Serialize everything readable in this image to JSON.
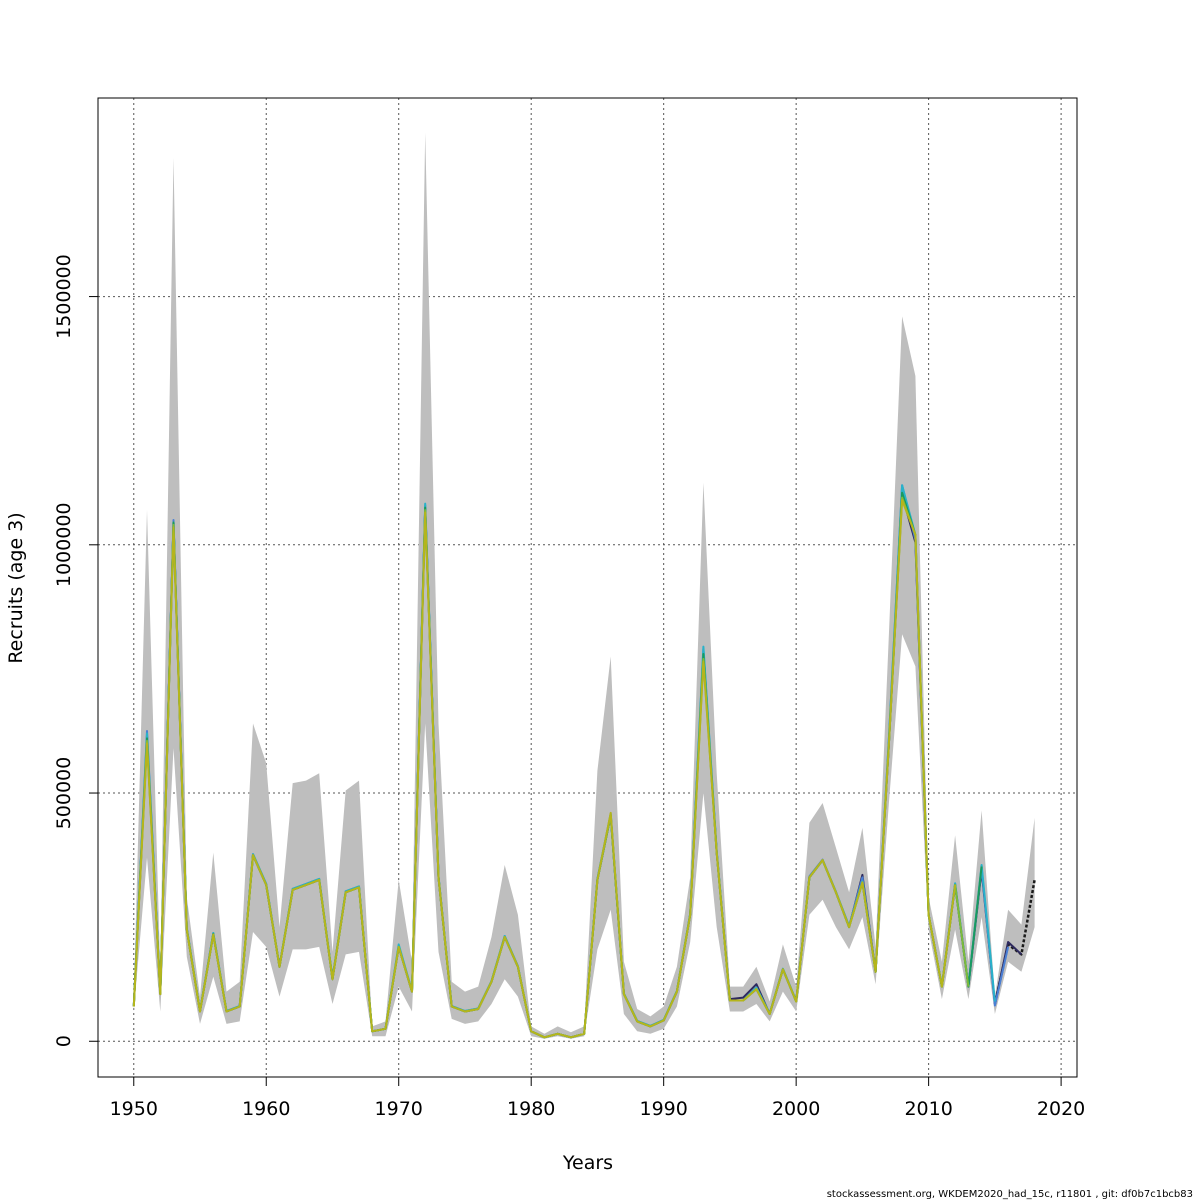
{
  "chart_data": {
    "type": "line",
    "title": "",
    "xlabel": "Years",
    "ylabel": "Recruits (age 3)",
    "xlim": [
      1947.3,
      2021.2
    ],
    "ylim": [
      -72000,
      1900000
    ],
    "x_ticks": [
      1950,
      1960,
      1970,
      1980,
      1990,
      2000,
      2010,
      2020
    ],
    "y_ticks": [
      0,
      500000,
      1000000,
      1500000
    ],
    "grid": true,
    "grid_style": "dotted",
    "legend": "none",
    "band_color": "#bebebe",
    "band": {
      "x": [
        1950,
        1951,
        1952,
        1953,
        1954,
        1955,
        1956,
        1957,
        1958,
        1959,
        1960,
        1961,
        1962,
        1963,
        1964,
        1965,
        1966,
        1967,
        1968,
        1969,
        1970,
        1971,
        1972,
        1973,
        1974,
        1975,
        1976,
        1977,
        1978,
        1979,
        1980,
        1981,
        1982,
        1983,
        1984,
        1985,
        1986,
        1987,
        1988,
        1989,
        1990,
        1991,
        1992,
        1993,
        1994,
        1995,
        1996,
        1997,
        1998,
        1999,
        2000,
        2001,
        2002,
        2003,
        2004,
        2005,
        2006,
        2007,
        2008,
        2009,
        2010,
        2011,
        2012,
        2013,
        2014,
        2015,
        2016,
        2017,
        2018
      ],
      "upper": [
        90000,
        1070000,
        140000,
        1780000,
        290000,
        90000,
        380000,
        100000,
        120000,
        640000,
        560000,
        230000,
        520000,
        525000,
        540000,
        180000,
        505000,
        525000,
        30000,
        40000,
        325000,
        160000,
        1830000,
        640000,
        120000,
        100000,
        110000,
        210000,
        355000,
        255000,
        30000,
        15000,
        30000,
        18000,
        30000,
        545000,
        775000,
        160000,
        65000,
        50000,
        70000,
        150000,
        330000,
        1125000,
        540000,
        110000,
        110000,
        150000,
        80000,
        195000,
        110000,
        440000,
        480000,
        390000,
        300000,
        430000,
        190000,
        820000,
        1460000,
        1340000,
        290000,
        160000,
        415000,
        160000,
        465000,
        90000,
        265000,
        235000,
        450000
      ],
      "lower": [
        60000,
        370000,
        60000,
        590000,
        170000,
        35000,
        130000,
        35000,
        40000,
        220000,
        190000,
        90000,
        185000,
        185000,
        190000,
        75000,
        175000,
        180000,
        10000,
        10000,
        110000,
        60000,
        640000,
        180000,
        45000,
        35000,
        40000,
        75000,
        125000,
        90000,
        10000,
        5000,
        10000,
        5000,
        10000,
        185000,
        265000,
        55000,
        20000,
        15000,
        25000,
        70000,
        200000,
        500000,
        230000,
        60000,
        60000,
        75000,
        40000,
        100000,
        60000,
        255000,
        285000,
        230000,
        185000,
        250000,
        115000,
        480000,
        820000,
        755000,
        225000,
        85000,
        225000,
        85000,
        250000,
        55000,
        160000,
        140000,
        230000
      ]
    },
    "series": [
      {
        "color": "#1a1a1a",
        "x": [
          2015,
          2016,
          2017,
          2018
        ],
        "values": [
          75000,
          195000,
          175000,
          325000
        ]
      },
      {
        "color": "#2e2a5e",
        "x": [
          1950,
          1951,
          1952,
          1953,
          1954,
          1955,
          1956,
          1957,
          1958,
          1959,
          1960,
          1961,
          1962,
          1963,
          1964,
          1965,
          1966,
          1967,
          1968,
          1969,
          1970,
          1971,
          1972,
          1973,
          1974,
          1975,
          1976,
          1977,
          1978,
          1979,
          1980,
          1981,
          1982,
          1983,
          1984,
          1985,
          1986,
          1987,
          1988,
          1989,
          1990,
          1991,
          1992,
          1993,
          1994,
          1995,
          1996,
          1997,
          1998,
          1999,
          2000,
          2001,
          2002,
          2003,
          2004,
          2005,
          2006,
          2007,
          2008,
          2009,
          2010,
          2011,
          2012,
          2013,
          2014,
          2015,
          2016,
          2017
        ],
        "values": [
          70000,
          615000,
          95000,
          1045000,
          225000,
          60000,
          215000,
          60000,
          70000,
          375000,
          315000,
          150000,
          305000,
          315000,
          325000,
          125000,
          300000,
          310000,
          20000,
          25000,
          190000,
          100000,
          1075000,
          330000,
          70000,
          60000,
          65000,
          120000,
          210000,
          150000,
          20000,
          8000,
          15000,
          8000,
          15000,
          325000,
          455000,
          95000,
          40000,
          30000,
          42000,
          100000,
          255000,
          780000,
          380000,
          85000,
          88000,
          115000,
          55000,
          145000,
          80000,
          330000,
          365000,
          300000,
          230000,
          335000,
          140000,
          600000,
          1100000,
          1005000,
          255000,
          110000,
          315000,
          110000,
          345000,
          75000,
          200000,
          175000
        ]
      },
      {
        "color": "#4a7fd4",
        "x": [
          1950,
          1951,
          1952,
          1953,
          1954,
          1955,
          1956,
          1957,
          1958,
          1959,
          1960,
          1961,
          1962,
          1963,
          1964,
          1965,
          1966,
          1967,
          1968,
          1969,
          1970,
          1971,
          1972,
          1973,
          1974,
          1975,
          1976,
          1977,
          1978,
          1979,
          1980,
          1981,
          1982,
          1983,
          1984,
          1985,
          1986,
          1987,
          1988,
          1989,
          1990,
          1991,
          1992,
          1993,
          1994,
          1995,
          1996,
          1997,
          1998,
          1999,
          2000,
          2001,
          2002,
          2003,
          2004,
          2005,
          2006,
          2007,
          2008,
          2009,
          2010,
          2011,
          2012,
          2013,
          2014,
          2015,
          2016
        ],
        "values": [
          72000,
          625000,
          97000,
          1050000,
          228000,
          61000,
          218000,
          61000,
          71000,
          377000,
          317000,
          151000,
          307000,
          317000,
          327000,
          127000,
          302000,
          312000,
          20000,
          25000,
          192000,
          101000,
          1080000,
          332000,
          71000,
          61000,
          66000,
          121000,
          212000,
          151000,
          20000,
          8000,
          15000,
          8000,
          15000,
          327000,
          458000,
          96000,
          41000,
          31000,
          43000,
          101000,
          257000,
          790000,
          383000,
          82000,
          82000,
          108000,
          56000,
          146000,
          81000,
          332000,
          366000,
          301000,
          232000,
          330000,
          140000,
          610000,
          1120000,
          1010000,
          255000,
          111000,
          318000,
          111000,
          350000,
          72000,
          190000
        ]
      },
      {
        "color": "#29b2c9",
        "x": [
          1950,
          1951,
          1952,
          1953,
          1954,
          1955,
          1956,
          1957,
          1958,
          1959,
          1960,
          1961,
          1962,
          1963,
          1964,
          1965,
          1966,
          1967,
          1968,
          1969,
          1970,
          1971,
          1972,
          1973,
          1974,
          1975,
          1976,
          1977,
          1978,
          1979,
          1980,
          1981,
          1982,
          1983,
          1984,
          1985,
          1986,
          1987,
          1988,
          1989,
          1990,
          1991,
          1992,
          1993,
          1994,
          1995,
          1996,
          1997,
          1998,
          1999,
          2000,
          2001,
          2002,
          2003,
          2004,
          2005,
          2006,
          2007,
          2008,
          2009,
          2010,
          2011,
          2012,
          2013,
          2014,
          2015
        ],
        "values": [
          72000,
          620000,
          97000,
          1045000,
          228000,
          61000,
          218000,
          61000,
          71000,
          377000,
          317000,
          151000,
          307000,
          317000,
          327000,
          127000,
          302000,
          312000,
          20000,
          25000,
          195000,
          101000,
          1083000,
          332000,
          71000,
          61000,
          66000,
          121000,
          212000,
          151000,
          20000,
          8000,
          15000,
          8000,
          15000,
          327000,
          458000,
          96000,
          41000,
          31000,
          43000,
          101000,
          257000,
          795000,
          383000,
          82000,
          82000,
          108000,
          56000,
          146000,
          81000,
          330000,
          365000,
          301000,
          232000,
          322000,
          140000,
          610000,
          1120000,
          1020000,
          255000,
          111000,
          318000,
          111000,
          355000,
          80000
        ]
      },
      {
        "color": "#1a9a5e",
        "x": [
          1950,
          1951,
          1952,
          1953,
          1954,
          1955,
          1956,
          1957,
          1958,
          1959,
          1960,
          1961,
          1962,
          1963,
          1964,
          1965,
          1966,
          1967,
          1968,
          1969,
          1970,
          1971,
          1972,
          1973,
          1974,
          1975,
          1976,
          1977,
          1978,
          1979,
          1980,
          1981,
          1982,
          1983,
          1984,
          1985,
          1986,
          1987,
          1988,
          1989,
          1990,
          1991,
          1992,
          1993,
          1994,
          1995,
          1996,
          1997,
          1998,
          1999,
          2000,
          2001,
          2002,
          2003,
          2004,
          2005,
          2006,
          2007,
          2008,
          2009,
          2010,
          2011,
          2012,
          2013,
          2014
        ],
        "values": [
          71000,
          610000,
          96000,
          1045000,
          226000,
          60000,
          216000,
          60000,
          70000,
          375000,
          315000,
          150000,
          305000,
          315000,
          325000,
          125000,
          300000,
          310000,
          20000,
          25000,
          190000,
          100000,
          1075000,
          330000,
          70000,
          60000,
          65000,
          120000,
          210000,
          150000,
          20000,
          8000,
          15000,
          8000,
          15000,
          325000,
          455000,
          95000,
          40000,
          30000,
          42000,
          100000,
          255000,
          780000,
          380000,
          82000,
          82000,
          105000,
          55000,
          145000,
          80000,
          330000,
          365000,
          300000,
          230000,
          320000,
          140000,
          600000,
          1105000,
          1020000,
          255000,
          110000,
          315000,
          110000,
          352000
        ]
      },
      {
        "color": "#7fba3a",
        "x": [
          1950,
          1951,
          1952,
          1953,
          1954,
          1955,
          1956,
          1957,
          1958,
          1959,
          1960,
          1961,
          1962,
          1963,
          1964,
          1965,
          1966,
          1967,
          1968,
          1969,
          1970,
          1971,
          1972,
          1973,
          1974,
          1975,
          1976,
          1977,
          1978,
          1979,
          1980,
          1981,
          1982,
          1983,
          1984,
          1985,
          1986,
          1987,
          1988,
          1989,
          1990,
          1991,
          1992,
          1993,
          1994,
          1995,
          1996,
          1997,
          1998,
          1999,
          2000,
          2001,
          2002,
          2003,
          2004,
          2005,
          2006,
          2007,
          2008,
          2009,
          2010,
          2011,
          2012,
          2013
        ],
        "values": [
          70000,
          605000,
          95000,
          1040000,
          225000,
          60000,
          215000,
          60000,
          70000,
          375000,
          315000,
          150000,
          305000,
          315000,
          325000,
          125000,
          300000,
          310000,
          20000,
          25000,
          190000,
          100000,
          1070000,
          330000,
          70000,
          60000,
          65000,
          120000,
          210000,
          150000,
          20000,
          8000,
          15000,
          8000,
          15000,
          325000,
          455000,
          95000,
          40000,
          30000,
          42000,
          100000,
          255000,
          770000,
          380000,
          82000,
          82000,
          105000,
          55000,
          145000,
          80000,
          330000,
          365000,
          300000,
          230000,
          320000,
          140000,
          600000,
          1095000,
          1020000,
          255000,
          110000,
          315000,
          110000
        ]
      },
      {
        "color": "#b5b51c",
        "x": [
          1950,
          1951,
          1952,
          1953,
          1954,
          1955,
          1956,
          1957,
          1958,
          1959,
          1960,
          1961,
          1962,
          1963,
          1964,
          1965,
          1966,
          1967,
          1968,
          1969,
          1970,
          1971,
          1972,
          1973,
          1974,
          1975,
          1976,
          1977,
          1978,
          1979,
          1980,
          1981,
          1982,
          1983,
          1984,
          1985,
          1986,
          1987,
          1988,
          1989,
          1990,
          1991,
          1992,
          1993,
          1994,
          1995,
          1996,
          1997,
          1998,
          1999,
          2000,
          2001,
          2002,
          2003,
          2004,
          2005,
          2006,
          2007,
          2008,
          2009,
          2010,
          2011,
          2012
        ],
        "values": [
          70000,
          600000,
          95000,
          1035000,
          225000,
          60000,
          215000,
          60000,
          70000,
          375000,
          315000,
          150000,
          305000,
          315000,
          325000,
          125000,
          300000,
          310000,
          20000,
          25000,
          190000,
          100000,
          1065000,
          330000,
          70000,
          60000,
          65000,
          120000,
          210000,
          150000,
          20000,
          8000,
          15000,
          8000,
          15000,
          325000,
          460000,
          95000,
          40000,
          30000,
          42000,
          100000,
          255000,
          765000,
          380000,
          82000,
          82000,
          105000,
          55000,
          145000,
          80000,
          330000,
          365000,
          300000,
          230000,
          320000,
          140000,
          600000,
          1090000,
          1020000,
          255000,
          110000,
          315000
        ]
      }
    ],
    "credit": "stockassessment.org, WKDEM2020_had_15c, r11801 , git: df0b7c1bcb83"
  }
}
